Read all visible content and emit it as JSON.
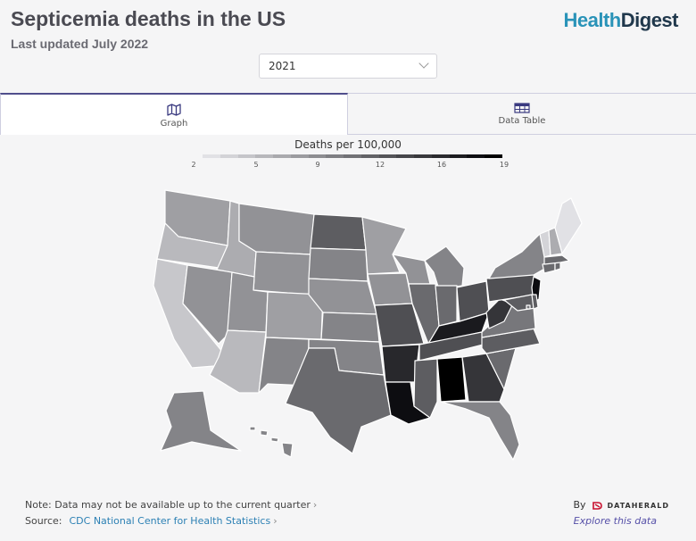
{
  "header": {
    "title": "Septicemia deaths in the US",
    "subtitle": "Last updated July 2022",
    "brand_part1": "Health",
    "brand_part2": "Digest"
  },
  "year_select": {
    "value": "2021"
  },
  "tabs": [
    {
      "label": "Graph",
      "icon": "map-icon",
      "active": true
    },
    {
      "label": "Data Table",
      "icon": "table-icon",
      "active": false
    }
  ],
  "legend": {
    "title": "Deaths per 100,000",
    "min": 2,
    "max": 19,
    "ticks": [
      "2",
      "5",
      "9",
      "12",
      "16",
      "19"
    ]
  },
  "map_data": {
    "metric": "Deaths per 100,000",
    "scale": "grayscale, light to dark",
    "states": {
      "WA": 7,
      "OR": 5,
      "CA": 4,
      "ID": 6,
      "NV": 8,
      "MT": 8,
      "WY": 8,
      "UT": 8,
      "AZ": 5,
      "CO": 7,
      "NM": 9,
      "ND": 12,
      "SD": 9,
      "NE": 8,
      "KS": 9,
      "OK": 9,
      "TX": 11,
      "MN": 7,
      "IA": 8,
      "MO": 13,
      "AR": 16,
      "LA": 18,
      "WI": 8,
      "IL": 11,
      "MI": 9,
      "IN": 11,
      "OH": 13,
      "KY": 17,
      "TN": 13,
      "MS": 12,
      "AL": 19,
      "GA": 15,
      "FL": 9,
      "SC": 11,
      "NC": 12,
      "VA": 10,
      "WV": 15,
      "PA": 13,
      "NY": 9,
      "NJ": 18,
      "MD": 12,
      "DE": 12,
      "CT": 11,
      "RI": 11,
      "MA": 11,
      "VT": 3,
      "NH": 6,
      "ME": 2,
      "AK": 9,
      "HI": 9,
      "DC": 10
    }
  },
  "footer": {
    "note": "Note: Data may not be available up to the current quarter",
    "source_label": "Source:",
    "source_link": "CDC National Center for Health Statistics",
    "by": "By",
    "attribution": "DATAHERALD",
    "explore": "Explore this data"
  }
}
